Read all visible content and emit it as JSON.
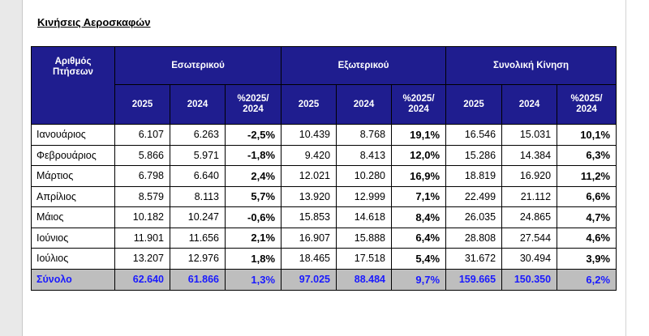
{
  "title": "Κινήσεις Αεροσκαφών",
  "table": {
    "corner_header": [
      "Αριθμός",
      "Πτήσεων"
    ],
    "groups": [
      "Εσωτερικού",
      "Εξωτερικού",
      "Συνολική Κίνηση"
    ],
    "subheaders": [
      "2025",
      "2024",
      "%2025/\n2024",
      "2025",
      "2024",
      "%2025/\n2024",
      "2025",
      "2024",
      "%2025/\n2024"
    ],
    "rows": [
      {
        "month": "Ιανουάριος",
        "cells": [
          "6.107",
          "6.263",
          "-2,5%",
          "10.439",
          "8.768",
          "19,1%",
          "16.546",
          "15.031",
          "10,1%"
        ]
      },
      {
        "month": "Φεβρουάριος",
        "cells": [
          "5.866",
          "5.971",
          "-1,8%",
          "9.420",
          "8.413",
          "12,0%",
          "15.286",
          "14.384",
          "6,3%"
        ]
      },
      {
        "month": "Μάρτιος",
        "cells": [
          "6.798",
          "6.640",
          "2,4%",
          "12.021",
          "10.280",
          "16,9%",
          "18.819",
          "16.920",
          "11,2%"
        ]
      },
      {
        "month": "Απρίλιος",
        "cells": [
          "8.579",
          "8.113",
          "5,7%",
          "13.920",
          "12.999",
          "7,1%",
          "22.499",
          "21.112",
          "6,6%"
        ]
      },
      {
        "month": "Μάιος",
        "cells": [
          "10.182",
          "10.247",
          "-0,6%",
          "15.853",
          "14.618",
          "8,4%",
          "26.035",
          "24.865",
          "4,7%"
        ]
      },
      {
        "month": "Ιούνιος",
        "cells": [
          "11.901",
          "11.656",
          "2,1%",
          "16.907",
          "15.888",
          "6,4%",
          "28.808",
          "27.544",
          "4,6%"
        ]
      },
      {
        "month": "Ιούλιος",
        "cells": [
          "13.207",
          "12.976",
          "1,8%",
          "18.465",
          "17.518",
          "5,4%",
          "31.672",
          "30.494",
          "3,9%"
        ]
      }
    ],
    "total": {
      "label": "Σύνολο",
      "cells": [
        "62.640",
        "61.866",
        "1,3%",
        "97.025",
        "88.484",
        "9,7%",
        "159.665",
        "150.350",
        "6,2%"
      ]
    }
  },
  "colors": {
    "header_bg": "#1f1d8f",
    "header_text": "#ffffff",
    "total_bg": "#bebebe",
    "total_text": "#1a1aff"
  }
}
